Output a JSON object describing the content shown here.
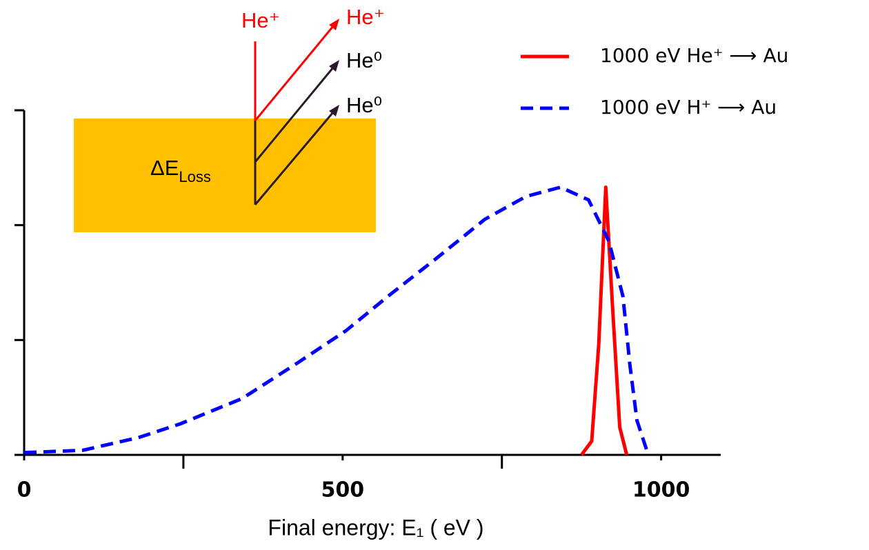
{
  "chart_data": {
    "type": "line",
    "x_label": "Final energy: E₁ ( eV )",
    "xlim": [
      0,
      1100
    ],
    "xticks": [
      0,
      500,
      1000
    ],
    "xminorticks": [
      250,
      750
    ],
    "ylim": [
      0,
      3
    ],
    "yticks": [
      0,
      1,
      2,
      3
    ],
    "series": [
      {
        "name": "1000 eV He⁺ ⟶ Au",
        "color": "#ff0000",
        "dash": false,
        "x": [
          875,
          891,
          902,
          913,
          924,
          935,
          946
        ],
        "values": [
          0,
          0.12,
          0.96,
          2.33,
          1.26,
          0.24,
          0
        ]
      },
      {
        "name": "1000 eV H⁺ ⟶ Au",
        "color": "#0000ff",
        "dash": true,
        "x": [
          0,
          92,
          179,
          245,
          342,
          429,
          505,
          571,
          647,
          723,
          788,
          842,
          886,
          918,
          940,
          951,
          962,
          978
        ],
        "values": [
          0.02,
          0.04,
          0.15,
          0.27,
          0.49,
          0.8,
          1.08,
          1.38,
          1.71,
          2.05,
          2.25,
          2.33,
          2.22,
          1.86,
          1.38,
          0.78,
          0.3,
          0.03
        ]
      }
    ],
    "annotations": {
      "incident": "He⁺",
      "reflected_ion": "He⁺",
      "neutral_1": "He⁰",
      "neutral_2": "He⁰",
      "energy_loss": "ΔE",
      "energy_loss_sub": "Loss"
    }
  }
}
